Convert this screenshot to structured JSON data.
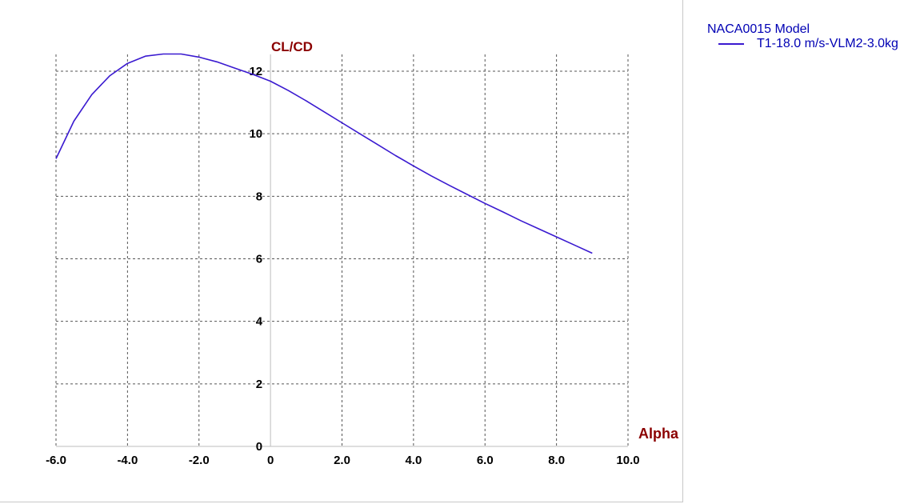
{
  "chart_data": {
    "type": "line",
    "title": "",
    "xlabel": "Alpha",
    "ylabel": "CL/CD",
    "xlim": [
      -6.0,
      10.0
    ],
    "ylim": [
      0,
      12
    ],
    "x_ticks": [
      "-6.0",
      "-4.0",
      "-2.0",
      "0",
      "2.0",
      "4.0",
      "6.0",
      "8.0",
      "10.0"
    ],
    "y_ticks": [
      "0",
      "2",
      "4",
      "6",
      "8",
      "10",
      "12"
    ],
    "grid": true,
    "legend_position": "top-right",
    "colors": {
      "series": "#3a1ad0",
      "axis_title": "#8b0000",
      "legend_text": "#0000b4"
    },
    "series": [
      {
        "name": "T1-18.0 m/s-VLM2-3.0kg",
        "x": [
          -6.0,
          -5.5,
          -5.0,
          -4.5,
          -4.0,
          -3.5,
          -3.0,
          -2.5,
          -2.0,
          -1.5,
          -1.0,
          -0.5,
          0.0,
          0.5,
          1.0,
          1.5,
          2.0,
          2.5,
          3.0,
          3.5,
          4.0,
          4.5,
          5.0,
          5.5,
          6.0,
          6.5,
          7.0,
          7.5,
          8.0,
          8.5,
          9.0
        ],
        "y": [
          9.2,
          10.4,
          11.25,
          11.85,
          12.25,
          12.48,
          12.55,
          12.55,
          12.45,
          12.3,
          12.1,
          11.9,
          11.68,
          11.38,
          11.05,
          10.7,
          10.35,
          10.0,
          9.65,
          9.3,
          8.97,
          8.65,
          8.35,
          8.06,
          7.77,
          7.5,
          7.22,
          6.96,
          6.7,
          6.44,
          6.18
        ]
      }
    ]
  },
  "legend": {
    "title": "NACA0015 Model",
    "entries": [
      "T1-18.0 m/s-VLM2-3.0kg"
    ]
  }
}
